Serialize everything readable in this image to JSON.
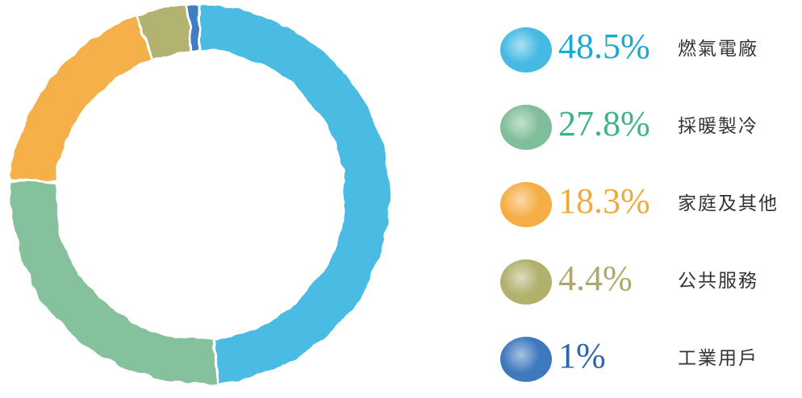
{
  "chart_data": {
    "type": "pie",
    "donut": true,
    "start_angle_deg": 0,
    "direction": "clockwise",
    "slices": [
      {
        "label": "燃氣電廠",
        "value": 48.5,
        "value_label": "48.5%",
        "color": "#33b3e0",
        "text_color": "#19a9d6"
      },
      {
        "label": "採暖製冷",
        "value": 27.8,
        "value_label": "27.8%",
        "color": "#73b88e",
        "text_color": "#3fb38a"
      },
      {
        "label": "家庭及其他",
        "value": 18.3,
        "value_label": "18.3%",
        "color": "#f5a531",
        "text_color": "#f2a93b"
      },
      {
        "label": "公共服務",
        "value": 4.4,
        "value_label": "4.4%",
        "color": "#a9a95e",
        "text_color": "#b0a868"
      },
      {
        "label": "工業用戶",
        "value": 1,
        "value_label": "1%",
        "color": "#2a6bb8",
        "text_color": "#2f63aa"
      }
    ],
    "legend_position": "right"
  }
}
